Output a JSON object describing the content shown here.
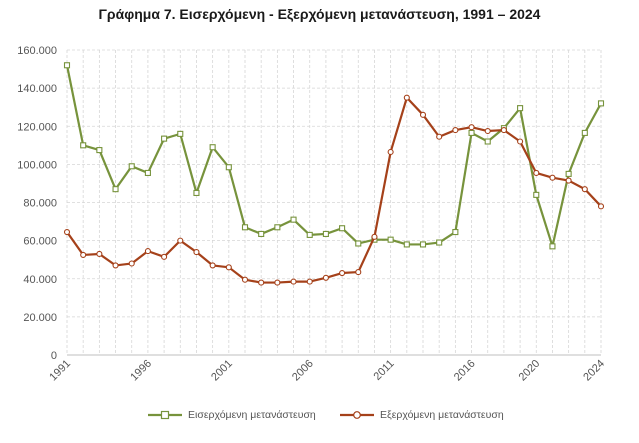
{
  "chart_data": {
    "type": "line",
    "title": "Γράφημα 7. Εισερχόμενη - Εξερχόμενη μετανάστευση, 1991 – 2024",
    "xlabel": "",
    "ylabel": "",
    "x": [
      1991,
      1992,
      1993,
      1994,
      1995,
      1996,
      1997,
      1998,
      1999,
      2000,
      2001,
      2002,
      2003,
      2004,
      2005,
      2006,
      2007,
      2008,
      2009,
      2010,
      2011,
      2012,
      2013,
      2014,
      2015,
      2016,
      2017,
      2018,
      2019,
      2020,
      2021,
      2022,
      2023,
      2024
    ],
    "x_tick_labels": [
      "1991",
      "1996",
      "2001",
      "2006",
      "2011",
      "2016",
      "2020",
      "2024"
    ],
    "x_tick_values": [
      1991,
      1996,
      2001,
      2006,
      2011,
      2016,
      2020,
      2024
    ],
    "ylim": [
      0,
      160000
    ],
    "y_tick_values": [
      0,
      20000,
      40000,
      60000,
      80000,
      100000,
      120000,
      140000,
      160000
    ],
    "y_tick_labels": [
      "0",
      "20.000",
      "40.000",
      "60.000",
      "80.000",
      "100.000",
      "120.000",
      "140.000",
      "160.000"
    ],
    "grid": "horizontal and vertical, dashed",
    "legend_position": "bottom",
    "series": [
      {
        "name": "Εισερχόμενη μετανάστευση",
        "color": "#77933c",
        "marker": "square",
        "values": [
          152000,
          110000,
          107500,
          87000,
          99000,
          95500,
          113500,
          116000,
          85000,
          109000,
          98500,
          67000,
          63500,
          67000,
          71000,
          63000,
          63500,
          66500,
          58500,
          60500,
          60500,
          58000,
          58000,
          59000,
          64500,
          116500,
          112000,
          119000,
          129500,
          84000,
          57000,
          95000,
          116500,
          132000
        ]
      },
      {
        "name": "Εξερχόμενη μετανάστευση",
        "color": "#a5411a",
        "marker": "circle",
        "values": [
          64500,
          52500,
          53000,
          47000,
          48000,
          54500,
          51500,
          60000,
          54000,
          47000,
          46000,
          39500,
          38000,
          38000,
          38500,
          38500,
          40500,
          43000,
          43500,
          62000,
          106500,
          135000,
          126000,
          114500,
          118000,
          119500,
          117500,
          118000,
          112000,
          95500,
          93000,
          91500,
          87000,
          78000
        ]
      }
    ]
  }
}
